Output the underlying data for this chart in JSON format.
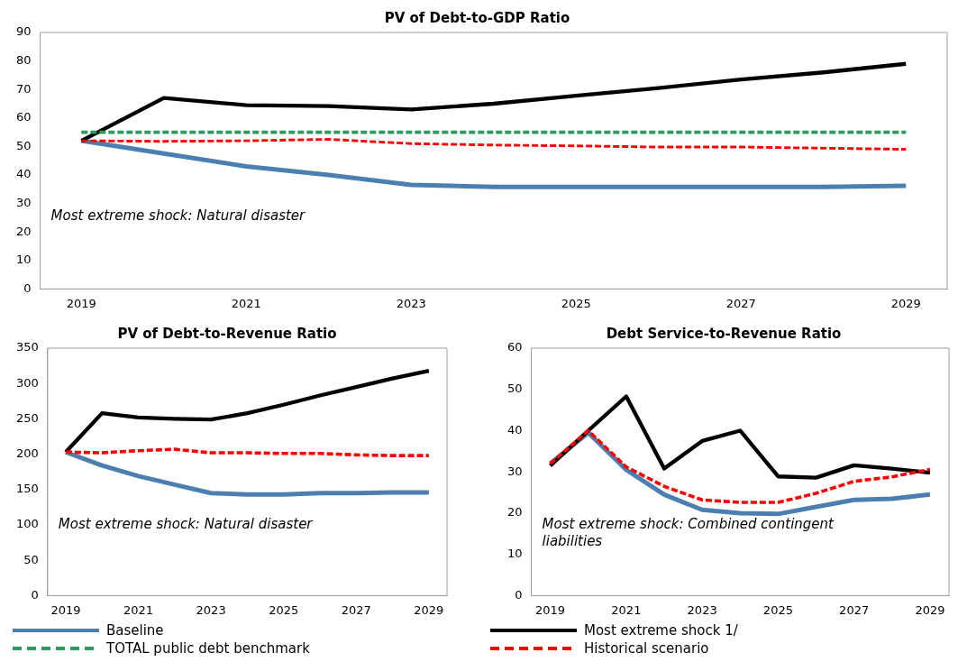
{
  "chart_data": [
    {
      "type": "line",
      "title": "PV of Debt-to-GDP Ratio",
      "categories": [
        "2019",
        null,
        "2021",
        null,
        "2023",
        null,
        "2025",
        null,
        "2027",
        null,
        "2029"
      ],
      "ylim": [
        0,
        90
      ],
      "yticks": [
        0,
        10,
        20,
        30,
        40,
        50,
        60,
        70,
        80,
        90
      ],
      "grid": false,
      "marker": "none",
      "legend": "bottom",
      "annotations": [
        "Most extreme shock: Natural disaster"
      ],
      "series": [
        {
          "name": "Baseline",
          "color": "#4a7fb0",
          "values": [
            52,
            47.5,
            43,
            40,
            36.5,
            35.8,
            35.8,
            35.8,
            35.8,
            35.8,
            36.2
          ]
        },
        {
          "name": "Most extreme shock 1/",
          "color": "#000000",
          "values": [
            52,
            67,
            64.5,
            64.2,
            63,
            65,
            67.8,
            70.5,
            73.5,
            76,
            79
          ]
        },
        {
          "name": "TOTAL public debt benchmark",
          "color": "#2e9a5e",
          "line_style": "dashed",
          "values": [
            55,
            55,
            55,
            55,
            55,
            55,
            55,
            55,
            55,
            55,
            55
          ]
        },
        {
          "name": "Historical scenario",
          "color": "#ff0000",
          "line_style": "dashed",
          "values": [
            52,
            51.8,
            52,
            52.5,
            51,
            50.5,
            50.2,
            49.8,
            49.8,
            49.4,
            49
          ]
        }
      ]
    },
    {
      "type": "line",
      "title": "PV of Debt-to-Revenue Ratio",
      "categories": [
        "2019",
        null,
        "2021",
        null,
        "2023",
        null,
        "2025",
        null,
        "2027",
        null,
        "2029"
      ],
      "ylim": [
        0,
        350
      ],
      "yticks": [
        0,
        50,
        100,
        150,
        200,
        250,
        300,
        350
      ],
      "grid": false,
      "marker": "none",
      "annotations": [
        "Most extreme shock: Natural disaster"
      ],
      "series": [
        {
          "color": "#4a7fb0",
          "values": [
            203,
            184,
            169,
            157,
            145,
            143,
            143,
            145,
            145,
            146,
            146
          ]
        },
        {
          "color": "#000000",
          "values": [
            203,
            258,
            252,
            250,
            249,
            258,
            270,
            283,
            295,
            307,
            318
          ]
        },
        {
          "color": "#ff0000",
          "line_style": "dashed",
          "values": [
            203,
            202,
            205,
            207,
            202,
            202,
            201,
            201,
            199,
            198,
            198
          ]
        }
      ]
    },
    {
      "type": "line",
      "title": "Debt Service-to-Revenue Ratio",
      "categories": [
        "2019",
        null,
        "2021",
        null,
        "2023",
        null,
        "2025",
        null,
        "2027",
        null,
        "2029"
      ],
      "ylim": [
        0,
        60
      ],
      "yticks": [
        0,
        10,
        20,
        30,
        40,
        50,
        60
      ],
      "grid": false,
      "marker": "none",
      "annotations": [
        "Most extreme shock: Combined contingent liabilities"
      ],
      "series": [
        {
          "color": "#4a7fb0",
          "values": [
            32,
            39.5,
            30.5,
            24.5,
            20.8,
            20,
            19.8,
            21.5,
            23.2,
            23.5,
            24.5
          ]
        },
        {
          "color": "#000000",
          "values": [
            31.5,
            40,
            48.3,
            30.8,
            37.5,
            40,
            28.9,
            28.6,
            31.6,
            30.8,
            29.8
          ]
        },
        {
          "color": "#ff0000",
          "line_style": "dashed",
          "values": [
            32,
            40,
            31.2,
            26.5,
            23.2,
            22.6,
            22.6,
            24.8,
            27.7,
            28.8,
            30.6
          ]
        }
      ]
    }
  ]
}
